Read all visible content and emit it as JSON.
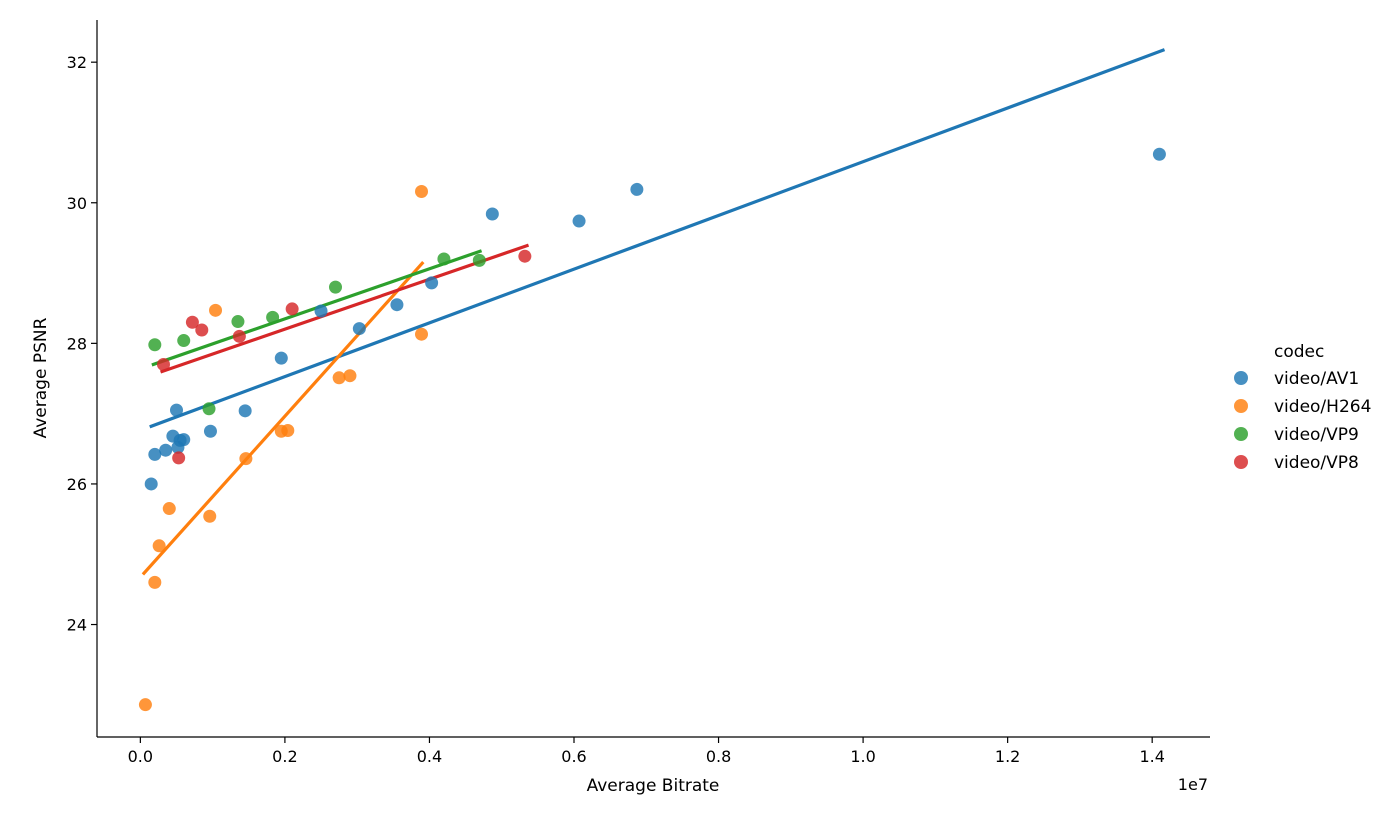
{
  "chart_data": {
    "type": "scatter",
    "xlabel": "Average Bitrate",
    "ylabel": "Average PSNR",
    "x_offset_label": "1e7",
    "xlim": [
      -0.06,
      1.48
    ],
    "ylim": [
      22.4,
      32.6
    ],
    "x_ticks": [
      0.0,
      0.2,
      0.4,
      0.6,
      0.8,
      1.0,
      1.2,
      1.4
    ],
    "x_tick_labels": [
      "0.0",
      "0.2",
      "0.4",
      "0.6",
      "0.8",
      "1.0",
      "1.2",
      "1.4"
    ],
    "y_ticks": [
      24,
      26,
      28,
      30,
      32
    ],
    "y_tick_labels": [
      "24",
      "26",
      "28",
      "30",
      "32"
    ],
    "grid": false,
    "legend": {
      "title": "codec",
      "placement": "right-outside",
      "entries": [
        "video/AV1",
        "video/H264",
        "video/VP9",
        "video/VP8"
      ]
    },
    "series": [
      {
        "name": "video/AV1",
        "color": "#1f77b4",
        "points": [
          [
            0.015,
            26.0
          ],
          [
            0.02,
            26.42
          ],
          [
            0.035,
            26.48
          ],
          [
            0.045,
            26.68
          ],
          [
            0.05,
            27.05
          ],
          [
            0.052,
            26.52
          ],
          [
            0.055,
            26.62
          ],
          [
            0.06,
            26.63
          ],
          [
            0.097,
            26.75
          ],
          [
            0.145,
            27.04
          ],
          [
            0.195,
            27.79
          ],
          [
            0.25,
            28.46
          ],
          [
            0.303,
            28.21
          ],
          [
            0.355,
            28.55
          ],
          [
            0.403,
            28.86
          ],
          [
            0.487,
            29.84
          ],
          [
            0.607,
            29.74
          ],
          [
            0.687,
            30.19
          ],
          [
            1.41,
            30.69
          ]
        ],
        "fit": [
          [
            0.015,
            26.82
          ],
          [
            1.415,
            32.17
          ]
        ]
      },
      {
        "name": "video/H264",
        "color": "#ff7f0e",
        "points": [
          [
            0.007,
            22.86
          ],
          [
            0.02,
            24.6
          ],
          [
            0.026,
            25.12
          ],
          [
            0.04,
            25.65
          ],
          [
            0.096,
            25.54
          ],
          [
            0.104,
            28.47
          ],
          [
            0.146,
            26.36
          ],
          [
            0.195,
            26.75
          ],
          [
            0.204,
            26.76
          ],
          [
            0.275,
            27.51
          ],
          [
            0.29,
            27.54
          ],
          [
            0.389,
            28.13
          ],
          [
            0.389,
            30.16
          ]
        ],
        "fit": [
          [
            0.005,
            24.73
          ],
          [
            0.39,
            29.14
          ]
        ]
      },
      {
        "name": "video/VP9",
        "color": "#2ca02c",
        "points": [
          [
            0.02,
            27.98
          ],
          [
            0.06,
            28.04
          ],
          [
            0.095,
            27.07
          ],
          [
            0.135,
            28.31
          ],
          [
            0.183,
            28.37
          ],
          [
            0.27,
            28.8
          ],
          [
            0.42,
            29.2
          ],
          [
            0.469,
            29.18
          ]
        ],
        "fit": [
          [
            0.018,
            27.7
          ],
          [
            0.47,
            29.31
          ]
        ]
      },
      {
        "name": "video/VP8",
        "color": "#d62728",
        "points": [
          [
            0.032,
            27.7
          ],
          [
            0.053,
            26.37
          ],
          [
            0.072,
            28.3
          ],
          [
            0.085,
            28.19
          ],
          [
            0.137,
            28.1
          ],
          [
            0.21,
            28.49
          ],
          [
            0.532,
            29.24
          ]
        ],
        "fit": [
          [
            0.03,
            27.6
          ],
          [
            0.535,
            29.39
          ]
        ]
      }
    ]
  }
}
